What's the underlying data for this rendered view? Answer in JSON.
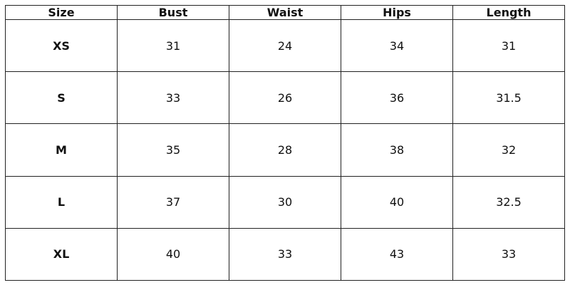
{
  "table": {
    "headers": [
      "Size",
      "Bust",
      "Waist",
      "Hips",
      "Length"
    ],
    "rows": [
      [
        "XS",
        31,
        24,
        34,
        31
      ],
      [
        "S",
        33,
        26,
        36,
        31.5
      ],
      [
        "M",
        35,
        28,
        38,
        32
      ],
      [
        "L",
        37,
        30,
        40,
        32.5
      ],
      [
        "XL",
        40,
        33,
        43,
        33
      ]
    ]
  }
}
